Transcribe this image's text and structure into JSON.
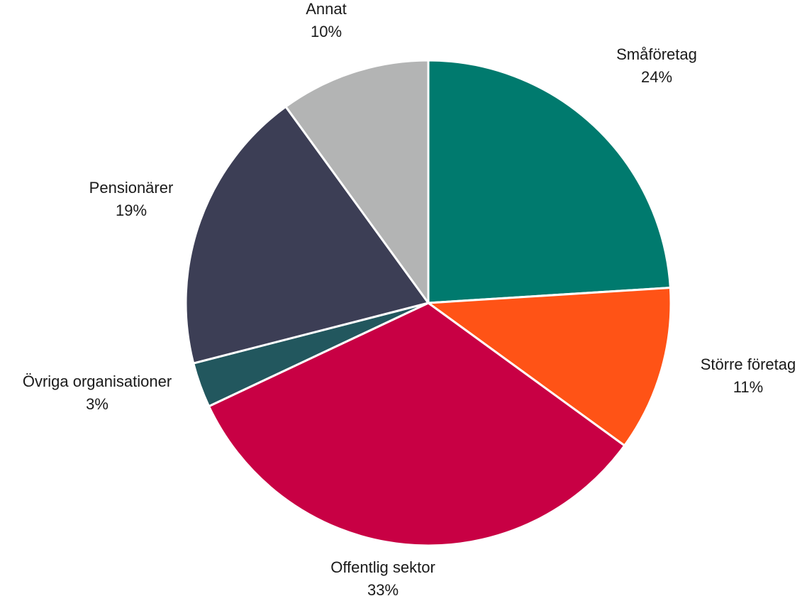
{
  "chart_data": {
    "type": "pie",
    "title": "",
    "start_angle_deg": 0,
    "direction": "clockwise",
    "slices": [
      {
        "label": "Småföretag",
        "value": 24,
        "display": "24%",
        "color": "#007A6E"
      },
      {
        "label": "Större företag",
        "value": 11,
        "display": "11%",
        "color": "#FF5316"
      },
      {
        "label": "Offentlig sektor",
        "value": 33,
        "display": "33%",
        "color": "#C80044"
      },
      {
        "label": "Övriga organisationer",
        "value": 3,
        "display": "3%",
        "color": "#22575E"
      },
      {
        "label": "Pensionärer",
        "value": 19,
        "display": "19%",
        "color": "#3C3E55"
      },
      {
        "label": "Annat",
        "value": 10,
        "display": "10%",
        "color": "#B3B4B4"
      }
    ],
    "legend": "none",
    "data_labels": "outside"
  }
}
